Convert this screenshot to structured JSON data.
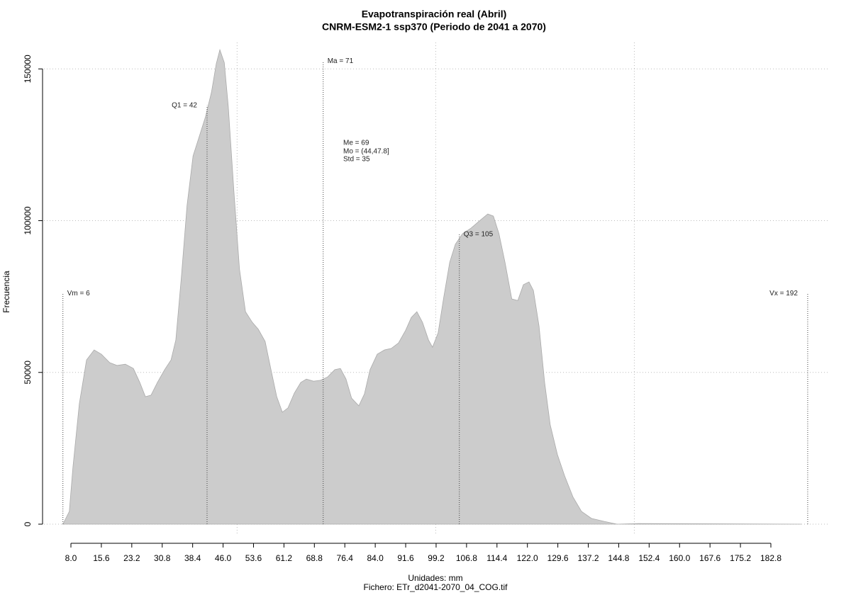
{
  "chart_data": {
    "type": "area",
    "title": "Evapotranspiración real (Abril)",
    "subtitle": "CNRM-ESM2-1 ssp370 (Periodo de 2041 a 2070)",
    "x_label": "Unidades: mm",
    "file_label": "Fichero: ETr_d2041-2070_04_COG.tif",
    "y_label": "Frecuencia",
    "color": "#cccccc",
    "x": [
      6,
      7.6,
      8.5,
      10.1,
      11.9,
      13.8,
      15.6,
      17.7,
      19.5,
      21.6,
      23.6,
      25.2,
      26.6,
      28,
      29.6,
      31.4,
      33,
      34.2,
      35.6,
      37,
      38.5,
      39.9,
      41.6,
      43.1,
      44.3,
      45.2,
      46.3,
      47.3,
      48.7,
      50.1,
      51.6,
      53.3,
      54.8,
      56.5,
      57.9,
      59.4,
      60.8,
      62.2,
      63.8,
      65.4,
      66.8,
      68.6,
      70.3,
      72.1,
      73.9,
      75.3,
      76.7,
      78.1,
      79.9,
      81.3,
      82.7,
      84.5,
      86.3,
      88,
      89.8,
      91.6,
      93,
      94.4,
      95.8,
      97.3,
      98.3,
      99.7,
      101.1,
      102.6,
      104,
      105.8,
      107.9,
      110,
      112.1,
      113.5,
      114.9,
      116.4,
      118.1,
      119.6,
      121,
      122.4,
      123.5,
      124.9,
      126.3,
      127.7,
      129.5,
      131.3,
      133.4,
      135.5,
      138,
      141.2,
      144.4,
      149.7,
      190.4
    ],
    "values": [
      0,
      4200,
      18700,
      39700,
      54100,
      57400,
      56000,
      53200,
      52300,
      52700,
      51300,
      46700,
      42000,
      42500,
      46700,
      50900,
      54100,
      60700,
      81700,
      105000,
      121300,
      127100,
      134200,
      142300,
      151700,
      156300,
      152100,
      137600,
      109700,
      84000,
      70000,
      66500,
      64200,
      60200,
      51300,
      42000,
      36900,
      38300,
      43200,
      46700,
      47800,
      47100,
      47400,
      48500,
      50900,
      51300,
      47800,
      41500,
      39000,
      42900,
      50900,
      56000,
      57400,
      57900,
      59700,
      63900,
      68100,
      70000,
      66500,
      60700,
      58300,
      63000,
      74700,
      86300,
      92200,
      95700,
      97500,
      99900,
      102200,
      101500,
      95700,
      86300,
      74200,
      73700,
      78900,
      79800,
      77000,
      65300,
      46700,
      32700,
      22900,
      15900,
      8900,
      4200,
      1900,
      900,
      0,
      200,
      0
    ],
    "xlim": [
      1.27,
      197.5
    ],
    "ylim": [
      -3500,
      158700
    ],
    "xticks": [
      {
        "value": 8,
        "label": "8.0"
      },
      15.6,
      23.2,
      30.8,
      38.4,
      {
        "value": 46,
        "label": "46.0"
      },
      53.6,
      61.2,
      68.8,
      76.4,
      {
        "value": 84,
        "label": "84.0"
      },
      91.6,
      99.2,
      106.8,
      114.4,
      {
        "value": 122,
        "label": "122.0"
      },
      129.6,
      137.2,
      144.8,
      152.4,
      {
        "value": 160,
        "label": "160.0"
      },
      167.6,
      175.2,
      182.8
    ],
    "yticks": [
      0,
      50000,
      100000,
      150000
    ],
    "xgrid": [
      49.5,
      99.1,
      148.7
    ],
    "grid": true,
    "annotations": [
      {
        "label": "Vm = 6",
        "x": 6,
        "y": 76000,
        "side": "right"
      },
      {
        "label": "Q1 = 42",
        "x": 42,
        "y": 138000,
        "side": "left"
      },
      {
        "label": "Ma = 71",
        "x": 71,
        "y": 152500,
        "side": "right"
      },
      {
        "label": "Q3 = 105",
        "x": 105,
        "y": 95500,
        "side": "right"
      },
      {
        "label": "Vx = 192",
        "x": 192,
        "y": 76000,
        "side": "left"
      }
    ],
    "stats": [
      "Me = 69",
      "Mo = (44,47.8]",
      "Std = 35"
    ]
  }
}
